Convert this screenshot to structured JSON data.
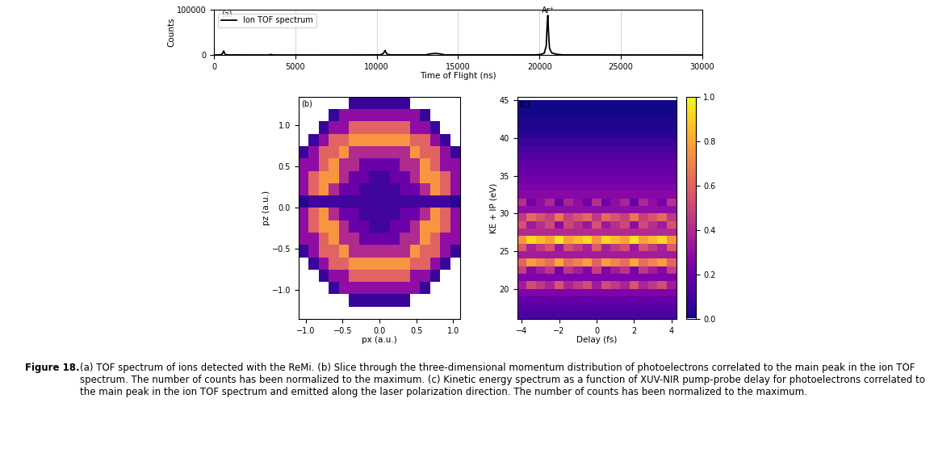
{
  "chart_data": [
    {
      "type": "line",
      "panel_label": "(a)",
      "x_label": "Time of Flight (ns)",
      "y_label": "Counts",
      "x": [
        0,
        300,
        500,
        560,
        600,
        640,
        700,
        900,
        3300,
        3450,
        3500,
        3550,
        3700,
        6000,
        10200,
        10400,
        10480,
        10520,
        10560,
        10650,
        10900,
        13000,
        13300,
        13600,
        13900,
        14200,
        19800,
        20100,
        20300,
        20420,
        20480,
        20520,
        20560,
        20620,
        20750,
        21000,
        21400,
        25000,
        30000
      ],
      "series": [
        {
          "name": "Ion TOF spectrum",
          "color": "#000000",
          "values": [
            0,
            200,
            1500,
            6000,
            9000,
            5000,
            1000,
            200,
            100,
            600,
            1500,
            500,
            100,
            100,
            200,
            3000,
            8000,
            10000,
            6000,
            1500,
            200,
            200,
            2500,
            3500,
            2500,
            200,
            300,
            1500,
            4000,
            20000,
            70000,
            87000,
            50000,
            15000,
            5000,
            2000,
            300,
            100,
            0
          ]
        }
      ],
      "annotations": [
        {
          "text": "Ar⁺",
          "x": 20520,
          "y": 87000
        }
      ],
      "xlim": [
        0,
        30000
      ],
      "xticks": [
        0,
        5000,
        10000,
        15000,
        20000,
        25000,
        30000
      ],
      "ylim": [
        0,
        100000
      ],
      "yticks": [
        0,
        100000
      ],
      "grid": "x",
      "legend": "upper left"
    },
    {
      "type": "heatmap",
      "panel_label": "(b)",
      "x_label": "px (a.u.)",
      "y_label": "pz (a.u.)",
      "xlim": [
        -1.1,
        1.1
      ],
      "xticks": [
        {
          "value": -1.0,
          "label": "−1.0"
        },
        {
          "value": -0.5,
          "label": "−0.5"
        },
        0.0,
        0.5,
        1.0
      ],
      "ylim": [
        -1.35,
        1.35
      ],
      "yticks": [
        {
          "value": -1.0,
          "label": "−1.0"
        },
        {
          "value": -0.5,
          "label": "−0.5"
        },
        0.0,
        0.5,
        1.0
      ],
      "color_range": [
        0,
        1
      ],
      "x_edges": [
        -1.1,
        -0.9625,
        -0.825,
        -0.6875,
        -0.55,
        -0.4125,
        -0.275,
        -0.1375,
        0,
        0.1375,
        0.275,
        0.4125,
        0.55,
        0.6875,
        0.825,
        0.9625,
        1.1
      ],
      "y_edges": [
        -1.35,
        -1.2,
        -1.05,
        -0.9,
        -0.75,
        -0.6,
        -0.45,
        -0.3,
        -0.15,
        0,
        0.15,
        0.3,
        0.45,
        0.6,
        0.75,
        0.9,
        1.05,
        1.2,
        1.35
      ],
      "cells": [
        [
          0,
          0,
          0,
          0,
          0,
          0,
          0,
          0,
          0,
          0,
          0,
          0,
          0,
          0,
          0,
          0
        ],
        [
          0,
          0,
          0,
          0,
          0,
          0.08,
          0.08,
          0.08,
          0.08,
          0.08,
          0.08,
          0,
          0,
          0,
          0,
          0
        ],
        [
          0,
          0,
          0,
          0.08,
          0.3,
          0.3,
          0.3,
          0.3,
          0.3,
          0.3,
          0.3,
          0.3,
          0.08,
          0,
          0,
          0
        ],
        [
          0,
          0,
          0.08,
          0.3,
          0.3,
          0.6,
          0.6,
          0.6,
          0.6,
          0.6,
          0.6,
          0.3,
          0.3,
          0.08,
          0,
          0
        ],
        [
          0,
          0.08,
          0.3,
          0.6,
          0.6,
          0.75,
          0.75,
          0.75,
          0.75,
          0.75,
          0.75,
          0.6,
          0.6,
          0.3,
          0.08,
          0
        ],
        [
          0.08,
          0.3,
          0.6,
          0.6,
          0.75,
          0.4,
          0.4,
          0.4,
          0.4,
          0.4,
          0.4,
          0.75,
          0.6,
          0.6,
          0.3,
          0.08
        ],
        [
          0.3,
          0.3,
          0.6,
          0.75,
          0.4,
          0.4,
          0.2,
          0.2,
          0.2,
          0.2,
          0.4,
          0.4,
          0.75,
          0.6,
          0.3,
          0.3
        ],
        [
          0.3,
          0.6,
          0.75,
          0.75,
          0.4,
          0.2,
          0.2,
          0.1,
          0.1,
          0.2,
          0.2,
          0.4,
          0.75,
          0.75,
          0.6,
          0.3
        ],
        [
          0.3,
          0.6,
          0.75,
          0.4,
          0.2,
          0.2,
          0.1,
          0.1,
          0.1,
          0.1,
          0.2,
          0.2,
          0.4,
          0.75,
          0.6,
          0.3
        ],
        [
          0.05,
          0.1,
          0.1,
          0.1,
          0.1,
          0.1,
          0.1,
          0.1,
          0.1,
          0.1,
          0.1,
          0.1,
          0.1,
          0.1,
          0.1,
          0.05
        ],
        [
          0.3,
          0.6,
          0.75,
          0.4,
          0.2,
          0.2,
          0.1,
          0.1,
          0.1,
          0.1,
          0.2,
          0.2,
          0.4,
          0.75,
          0.6,
          0.3
        ],
        [
          0.3,
          0.6,
          0.75,
          0.75,
          0.4,
          0.2,
          0.2,
          0.1,
          0.1,
          0.2,
          0.2,
          0.4,
          0.75,
          0.75,
          0.6,
          0.3
        ],
        [
          0.3,
          0.3,
          0.6,
          0.75,
          0.4,
          0.4,
          0.2,
          0.2,
          0.2,
          0.2,
          0.4,
          0.4,
          0.75,
          0.6,
          0.3,
          0.3
        ],
        [
          0.08,
          0.3,
          0.6,
          0.6,
          0.75,
          0.4,
          0.4,
          0.4,
          0.4,
          0.4,
          0.4,
          0.75,
          0.6,
          0.6,
          0.3,
          0.08
        ],
        [
          0,
          0.08,
          0.3,
          0.6,
          0.6,
          0.75,
          0.75,
          0.75,
          0.75,
          0.75,
          0.75,
          0.6,
          0.6,
          0.3,
          0.08,
          0
        ],
        [
          0,
          0,
          0.08,
          0.3,
          0.3,
          0.6,
          0.6,
          0.6,
          0.6,
          0.6,
          0.6,
          0.3,
          0.3,
          0.08,
          0,
          0
        ],
        [
          0,
          0,
          0,
          0.08,
          0.3,
          0.3,
          0.3,
          0.3,
          0.3,
          0.3,
          0.3,
          0.3,
          0.08,
          0,
          0,
          0
        ],
        [
          0,
          0,
          0,
          0,
          0,
          0.08,
          0.08,
          0.08,
          0.08,
          0.08,
          0.08,
          0,
          0,
          0,
          0,
          0
        ]
      ]
    },
    {
      "type": "heatmap",
      "panel_label": "(c)",
      "x_label": "Delay (fs)",
      "y_label": "KE + IP (eV)",
      "xlim": [
        -4.25,
        4.25
      ],
      "xticks": [
        {
          "value": -4,
          "label": "−4"
        },
        {
          "value": -2,
          "label": "−2"
        },
        0,
        2,
        4
      ],
      "ylim": [
        16,
        45.5
      ],
      "yticks": [
        20,
        25,
        30,
        35,
        40,
        45
      ],
      "colorbar": {
        "range": [
          0,
          1
        ],
        "ticks": [
          0.0,
          0.2,
          0.4,
          0.6,
          0.8,
          1.0
        ]
      },
      "x_edges": [
        -4.25,
        -3.75,
        -3.25,
        -2.75,
        -2.25,
        -1.75,
        -1.25,
        -0.75,
        -0.25,
        0.25,
        0.75,
        1.25,
        1.75,
        2.25,
        2.75,
        3.25,
        3.75,
        4.25
      ],
      "y_edges": [
        16,
        17,
        18,
        19,
        20,
        21,
        22,
        23,
        24,
        25,
        26,
        27,
        28,
        29,
        30,
        31,
        32,
        33,
        34,
        35,
        36,
        37,
        38,
        39,
        40,
        41,
        42,
        43,
        44,
        45
      ],
      "cells": [
        [
          0.12,
          0.12,
          0.12,
          0.12,
          0.12,
          0.12,
          0.12,
          0.12,
          0.12,
          0.12,
          0.12,
          0.12,
          0.12,
          0.12,
          0.12,
          0.12,
          0.12
        ],
        [
          0.15,
          0.15,
          0.15,
          0.15,
          0.15,
          0.15,
          0.15,
          0.15,
          0.15,
          0.15,
          0.15,
          0.15,
          0.15,
          0.15,
          0.15,
          0.15,
          0.15
        ],
        [
          0.18,
          0.18,
          0.18,
          0.18,
          0.18,
          0.18,
          0.18,
          0.18,
          0.18,
          0.18,
          0.18,
          0.18,
          0.18,
          0.18,
          0.18,
          0.18,
          0.18
        ],
        [
          0.25,
          0.25,
          0.25,
          0.25,
          0.25,
          0.25,
          0.25,
          0.25,
          0.25,
          0.25,
          0.25,
          0.25,
          0.25,
          0.25,
          0.25,
          0.25,
          0.25
        ],
        [
          0.35,
          0.52,
          0.45,
          0.38,
          0.55,
          0.38,
          0.45,
          0.52,
          0.35,
          0.52,
          0.45,
          0.38,
          0.55,
          0.38,
          0.45,
          0.52,
          0.35
        ],
        [
          0.25,
          0.25,
          0.25,
          0.25,
          0.25,
          0.25,
          0.25,
          0.25,
          0.25,
          0.25,
          0.25,
          0.25,
          0.25,
          0.25,
          0.25,
          0.25,
          0.25
        ],
        [
          0.47,
          0.27,
          0.35,
          0.44,
          0.23,
          0.43,
          0.35,
          0.26,
          0.47,
          0.26,
          0.35,
          0.43,
          0.23,
          0.44,
          0.35,
          0.27,
          0.47
        ],
        [
          0.6,
          0.77,
          0.7,
          0.63,
          0.8,
          0.63,
          0.7,
          0.77,
          0.6,
          0.77,
          0.7,
          0.63,
          0.8,
          0.63,
          0.7,
          0.77,
          0.6
        ],
        [
          0.35,
          0.35,
          0.35,
          0.35,
          0.35,
          0.35,
          0.35,
          0.35,
          0.35,
          0.35,
          0.35,
          0.35,
          0.35,
          0.35,
          0.35,
          0.35,
          0.35
        ],
        [
          0.57,
          0.37,
          0.45,
          0.54,
          0.33,
          0.53,
          0.45,
          0.36,
          0.57,
          0.36,
          0.45,
          0.53,
          0.33,
          0.54,
          0.45,
          0.37,
          0.57
        ],
        [
          0.75,
          0.92,
          0.85,
          0.78,
          0.95,
          0.78,
          0.85,
          0.92,
          0.75,
          0.92,
          0.85,
          0.78,
          0.95,
          0.78,
          0.85,
          0.92,
          0.75
        ],
        [
          0.4,
          0.4,
          0.4,
          0.4,
          0.4,
          0.4,
          0.4,
          0.4,
          0.4,
          0.4,
          0.4,
          0.4,
          0.4,
          0.4,
          0.4,
          0.4,
          0.4
        ],
        [
          0.54,
          0.34,
          0.42,
          0.51,
          0.3,
          0.5,
          0.42,
          0.33,
          0.54,
          0.33,
          0.42,
          0.5,
          0.3,
          0.51,
          0.42,
          0.34,
          0.54
        ],
        [
          0.45,
          0.62,
          0.55,
          0.48,
          0.65,
          0.48,
          0.55,
          0.62,
          0.45,
          0.62,
          0.55,
          0.48,
          0.65,
          0.48,
          0.55,
          0.62,
          0.45
        ],
        [
          0.3,
          0.3,
          0.3,
          0.3,
          0.3,
          0.3,
          0.3,
          0.3,
          0.3,
          0.3,
          0.3,
          0.3,
          0.3,
          0.3,
          0.3,
          0.3,
          0.3
        ],
        [
          0.42,
          0.22,
          0.3,
          0.39,
          0.18,
          0.38,
          0.3,
          0.21,
          0.42,
          0.21,
          0.3,
          0.38,
          0.18,
          0.39,
          0.3,
          0.22,
          0.42
        ],
        [
          0.28,
          0.28,
          0.28,
          0.28,
          0.28,
          0.28,
          0.28,
          0.28,
          0.28,
          0.28,
          0.28,
          0.28,
          0.28,
          0.28,
          0.28,
          0.28,
          0.28
        ],
        [
          0.25,
          0.25,
          0.25,
          0.25,
          0.25,
          0.25,
          0.25,
          0.25,
          0.25,
          0.25,
          0.25,
          0.25,
          0.25,
          0.25,
          0.25,
          0.25,
          0.25
        ],
        [
          0.22,
          0.22,
          0.22,
          0.22,
          0.22,
          0.22,
          0.22,
          0.22,
          0.22,
          0.22,
          0.22,
          0.22,
          0.22,
          0.22,
          0.22,
          0.22,
          0.22
        ],
        [
          0.2,
          0.2,
          0.2,
          0.2,
          0.2,
          0.2,
          0.2,
          0.2,
          0.2,
          0.2,
          0.2,
          0.2,
          0.2,
          0.2,
          0.2,
          0.2,
          0.2
        ],
        [
          0.18,
          0.18,
          0.18,
          0.18,
          0.18,
          0.18,
          0.18,
          0.18,
          0.18,
          0.18,
          0.18,
          0.18,
          0.18,
          0.18,
          0.18,
          0.18,
          0.18
        ],
        [
          0.15,
          0.15,
          0.15,
          0.15,
          0.15,
          0.15,
          0.15,
          0.15,
          0.15,
          0.15,
          0.15,
          0.15,
          0.15,
          0.15,
          0.15,
          0.15,
          0.15
        ],
        [
          0.12,
          0.12,
          0.12,
          0.12,
          0.12,
          0.12,
          0.12,
          0.12,
          0.12,
          0.12,
          0.12,
          0.12,
          0.12,
          0.12,
          0.12,
          0.12,
          0.12
        ],
        [
          0.08,
          0.08,
          0.08,
          0.08,
          0.08,
          0.08,
          0.08,
          0.08,
          0.08,
          0.08,
          0.08,
          0.08,
          0.08,
          0.08,
          0.08,
          0.08,
          0.08
        ],
        [
          0.05,
          0.05,
          0.05,
          0.05,
          0.05,
          0.05,
          0.05,
          0.05,
          0.05,
          0.05,
          0.05,
          0.05,
          0.05,
          0.05,
          0.05,
          0.05,
          0.05
        ],
        [
          0.03,
          0.03,
          0.03,
          0.03,
          0.03,
          0.03,
          0.03,
          0.03,
          0.03,
          0.03,
          0.03,
          0.03,
          0.03,
          0.03,
          0.03,
          0.03,
          0.03
        ],
        [
          0.02,
          0.02,
          0.02,
          0.02,
          0.02,
          0.02,
          0.02,
          0.02,
          0.02,
          0.02,
          0.02,
          0.02,
          0.02,
          0.02,
          0.02,
          0.02,
          0.02
        ],
        [
          0.01,
          0.01,
          0.01,
          0.01,
          0.01,
          0.01,
          0.01,
          0.01,
          0.01,
          0.01,
          0.01,
          0.01,
          0.01,
          0.01,
          0.01,
          0.01,
          0.01
        ],
        [
          0.01,
          0.01,
          0.01,
          0.01,
          0.01,
          0.01,
          0.01,
          0.01,
          0.01,
          0.01,
          0.01,
          0.01,
          0.01,
          0.01,
          0.01,
          0.01,
          0.01
        ]
      ]
    }
  ],
  "caption": {
    "label": "Figure 18.",
    "text": "(a) TOF spectrum of ions detected with the ReMi. (b) Slice through the three-dimensional momentum distribution of photoelectrons correlated to the main peak in the ion TOF spectrum. The number of counts has been normalized to the maximum. (c) Kinetic energy spectrum as a function of XUV-NIR pump-probe delay for photoelectrons correlated to the main peak in the ion TOF spectrum and emitted along the laser polarization direction. The number of counts has been normalized to the maximum."
  }
}
